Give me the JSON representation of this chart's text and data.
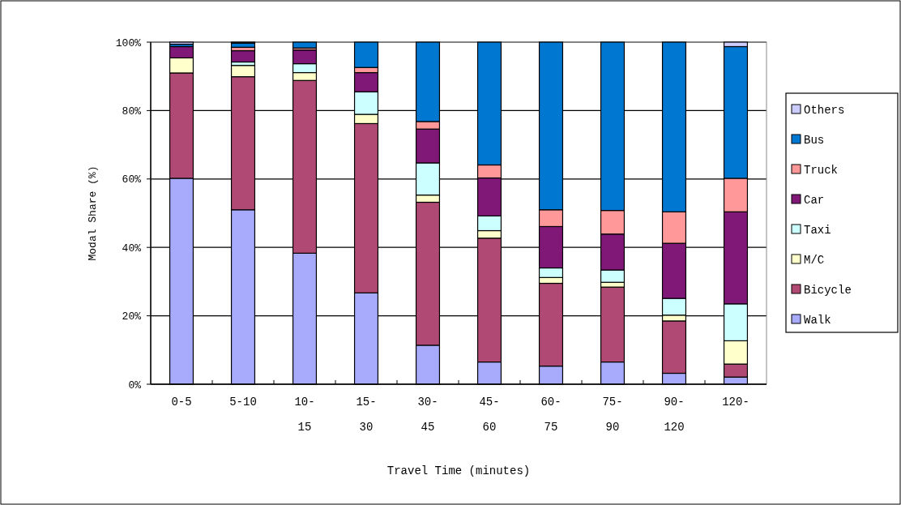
{
  "chart_data": {
    "type": "bar",
    "stacked": true,
    "xlabel": "Travel Time (minutes)",
    "ylabel": "Modal Share (%)",
    "categories": [
      "0-5",
      "5-10",
      "10-15",
      "15-30",
      "30-45",
      "45-60",
      "60-75",
      "75-90",
      "90-120",
      "120-"
    ],
    "ylim": [
      0,
      100
    ],
    "yticks": [
      {
        "value": 0,
        "label": "0%"
      },
      {
        "value": 20,
        "label": "20%"
      },
      {
        "value": 40,
        "label": "40%"
      },
      {
        "value": 60,
        "label": "60%"
      },
      {
        "value": 80,
        "label": "80%"
      },
      {
        "value": 100,
        "label": "100%"
      }
    ],
    "grid": "y",
    "legend": "right",
    "series": [
      {
        "name": "Walk",
        "color": "#a8aafc",
        "values": [
          60.2,
          51.0,
          38.3,
          26.7,
          11.4,
          6.5,
          5.3,
          6.5,
          3.2,
          2.1
        ]
      },
      {
        "name": "Bicycle",
        "color": "#b04a75",
        "values": [
          30.8,
          38.9,
          50.5,
          49.5,
          41.8,
          36.2,
          24.2,
          21.9,
          15.3,
          3.8
        ]
      },
      {
        "name": "M/C",
        "color": "#ffffcc",
        "values": [
          4.4,
          3.3,
          2.3,
          2.7,
          2.1,
          2.2,
          1.7,
          1.4,
          1.7,
          6.8
        ]
      },
      {
        "name": "Taxi",
        "color": "#ccffff",
        "values": [
          0,
          1.0,
          2.6,
          6.6,
          9.4,
          4.3,
          2.8,
          3.6,
          4.9,
          10.8
        ]
      },
      {
        "name": "Car",
        "color": "#801878",
        "values": [
          3.3,
          3.3,
          4.0,
          5.6,
          9.9,
          11.1,
          12.1,
          10.5,
          16.1,
          26.9
        ]
      },
      {
        "name": "Truck",
        "color": "#ff9999",
        "values": [
          0,
          1.0,
          0.6,
          1.5,
          2.2,
          3.8,
          4.9,
          6.9,
          9.2,
          9.8
        ]
      },
      {
        "name": "Bus",
        "color": "#0077d0",
        "values": [
          0.7,
          1.2,
          1.7,
          7.4,
          23.2,
          35.9,
          49.0,
          49.2,
          49.6,
          38.5
        ]
      },
      {
        "name": "Others",
        "color": "#ccccff",
        "values": [
          0.6,
          0.3,
          0,
          0,
          0,
          0,
          0,
          0,
          0,
          1.3
        ]
      }
    ]
  }
}
